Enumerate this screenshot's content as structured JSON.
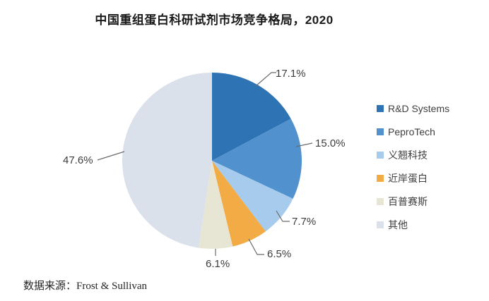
{
  "title": "中国重组蛋白科研试剂市场竞争格局，2020",
  "source": "数据来源：Frost & Sullivan",
  "chart_data": {
    "type": "pie",
    "title": "中国重组蛋白科研试剂市场竞争格局，2020",
    "categories": [
      "R&D Systems",
      "PeproTech",
      "义翘科技",
      "近岸蛋白",
      "百普赛斯",
      "其他"
    ],
    "values": [
      17.1,
      15.0,
      7.7,
      6.5,
      6.1,
      47.6
    ],
    "data_labels": [
      "17.1%",
      "15.0%",
      "7.7%",
      "6.5%",
      "6.1%",
      "47.6%"
    ],
    "colors": [
      "#2E74B5",
      "#5091CE",
      "#A6CBEC",
      "#F2AB45",
      "#E7E5D3",
      "#DBE1EB"
    ],
    "legend_position": "right",
    "start_angle_deg": 0,
    "direction": "clockwise",
    "leader_line_color": "#6b6b6b"
  }
}
